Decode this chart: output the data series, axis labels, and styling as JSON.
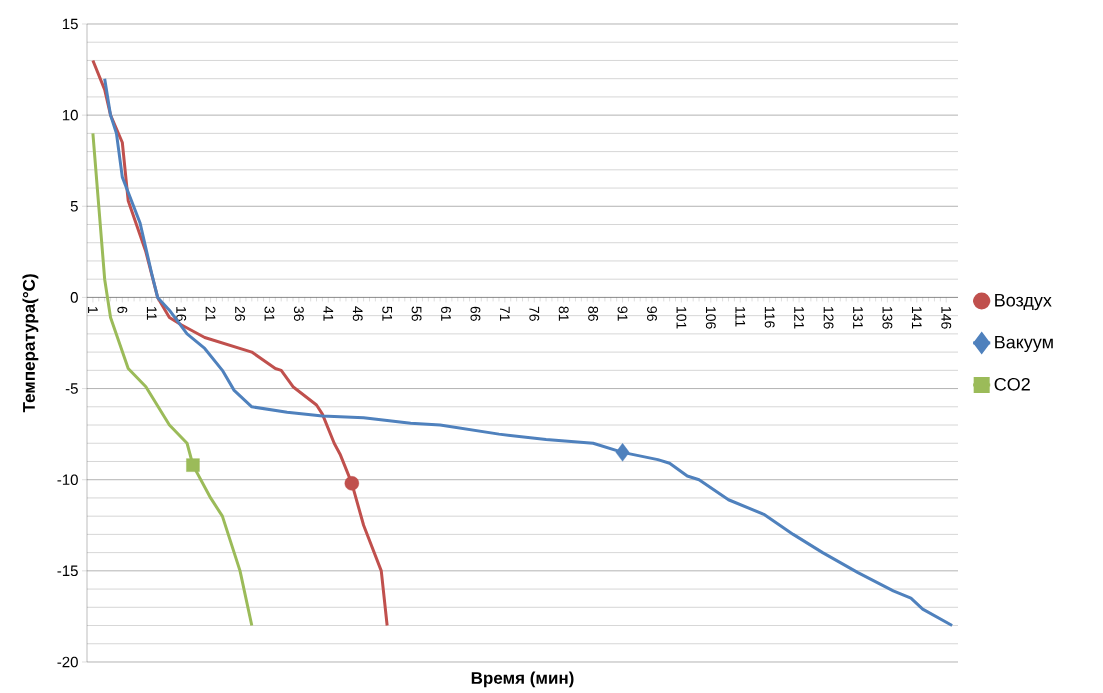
{
  "chart_data": {
    "type": "line",
    "xlabel": "Время (мин)",
    "ylabel": "Температура(°C)",
    "xlim": [
      0,
      148
    ],
    "xticks": [
      1,
      6,
      11,
      16,
      21,
      26,
      31,
      36,
      41,
      46,
      51,
      56,
      61,
      66,
      71,
      76,
      81,
      86,
      91,
      96,
      101,
      106,
      111,
      116,
      121,
      126,
      131,
      136,
      141,
      146
    ],
    "ylim": [
      -20,
      15
    ],
    "yticks": [
      -20,
      -15,
      -10,
      -5,
      0,
      5,
      10,
      15
    ],
    "grid": "y",
    "legend": "right",
    "line_style": "solid",
    "series": [
      {
        "name": "Воздух",
        "color": "#c0504d",
        "x": [
          1,
          3,
          4,
          6,
          7,
          10,
          12,
          14,
          16,
          20,
          28,
          32,
          33,
          35,
          39,
          40,
          42,
          43,
          45,
          47,
          50,
          51
        ],
        "values": [
          13,
          11.4,
          10,
          8.5,
          5.3,
          2.5,
          0,
          -1.1,
          -1.5,
          -2.2,
          -3,
          -3.9,
          -4,
          -4.9,
          -5.9,
          -6.4,
          -8,
          -8.6,
          -10.2,
          -12.5,
          -15,
          -18
        ]
      },
      {
        "name": "Вакуум",
        "color": "#4f81bd",
        "x": [
          3,
          4,
          5,
          6,
          9,
          11,
          12,
          14,
          17,
          20,
          23,
          25,
          28,
          34,
          40,
          47,
          55,
          60,
          70,
          78,
          86,
          91,
          97,
          99,
          102,
          104,
          109,
          115,
          120,
          125,
          131,
          137,
          140,
          142,
          147
        ],
        "values": [
          12,
          10,
          9,
          6.6,
          4.1,
          1.3,
          0,
          -0.7,
          -2,
          -2.8,
          -4,
          -5.1,
          -6,
          -6.3,
          -6.5,
          -6.6,
          -6.9,
          -7,
          -7.5,
          -7.8,
          -8,
          -8.5,
          -8.9,
          -9.1,
          -9.8,
          -10,
          -11.1,
          -11.9,
          -13,
          -14,
          -15.1,
          -16.1,
          -16.5,
          -17.1,
          -18
        ]
      },
      {
        "name": "CO2",
        "color": "#9bbb59",
        "x": [
          1,
          2,
          3,
          4,
          7,
          10,
          14,
          17,
          18,
          21,
          23,
          26,
          28
        ],
        "values": [
          9,
          5,
          1,
          -1.1,
          -3.9,
          -4.9,
          -7,
          -8,
          -9.2,
          -11,
          -12,
          -15,
          -18
        ]
      },
      {
        "type": "scatter",
        "color": "#c0504d",
        "marker": "circle",
        "x": [
          45
        ],
        "values": [
          -10.2
        ]
      },
      {
        "type": "scatter",
        "color": "#4f81bd",
        "marker": "diamond",
        "x": [
          91
        ],
        "values": [
          -8.5
        ]
      },
      {
        "type": "scatter",
        "color": "#9bbb59",
        "marker": "square",
        "x": [
          18
        ],
        "values": [
          -9.2
        ]
      }
    ]
  }
}
